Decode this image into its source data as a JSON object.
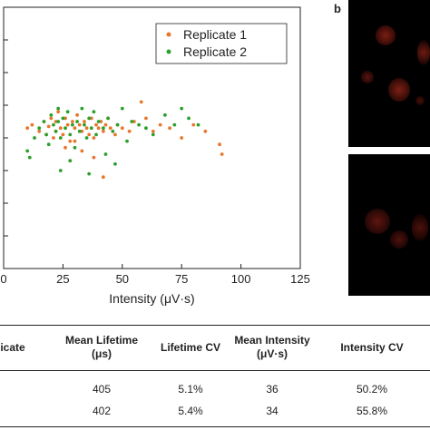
{
  "chart_data": {
    "type": "scatter",
    "xlabel": "Intensity (μV·s)",
    "xlim": [
      0,
      125
    ],
    "ylim": [
      0,
      8
    ],
    "x_ticks": [
      "0",
      "25",
      "50",
      "75",
      "100",
      "125"
    ],
    "legend_position": "top-right",
    "grid": false,
    "series": [
      {
        "name": "Replicate 1",
        "color": "#e8762c",
        "points": [
          [
            10,
            4.3
          ],
          [
            12,
            4.4
          ],
          [
            15,
            4.2
          ],
          [
            17,
            4.5
          ],
          [
            18,
            4.1
          ],
          [
            19,
            4.35
          ],
          [
            20,
            4.6
          ],
          [
            21,
            4.0
          ],
          [
            22,
            4.2
          ],
          [
            22,
            4.5
          ],
          [
            23,
            4.8
          ],
          [
            24,
            4.3
          ],
          [
            25,
            4.1
          ],
          [
            26,
            4.6
          ],
          [
            27,
            4.4
          ],
          [
            28,
            3.9
          ],
          [
            29,
            4.5
          ],
          [
            30,
            4.3
          ],
          [
            31,
            4.7
          ],
          [
            32,
            4.4
          ],
          [
            33,
            4.2
          ],
          [
            34,
            4.5
          ],
          [
            35,
            4.3
          ],
          [
            36,
            4.1
          ],
          [
            37,
            4.6
          ],
          [
            38,
            4.0
          ],
          [
            39,
            4.4
          ],
          [
            40,
            4.3
          ],
          [
            41,
            4.5
          ],
          [
            42,
            4.2
          ],
          [
            43,
            4.4
          ],
          [
            44,
            4.6
          ],
          [
            45,
            4.3
          ],
          [
            47,
            4.1
          ],
          [
            48,
            4.4
          ],
          [
            50,
            4.3
          ],
          [
            53,
            4.2
          ],
          [
            55,
            4.5
          ],
          [
            58,
            5.1
          ],
          [
            60,
            4.6
          ],
          [
            63,
            4.2
          ],
          [
            66,
            4.4
          ],
          [
            70,
            4.3
          ],
          [
            75,
            4.0
          ],
          [
            80,
            4.4
          ],
          [
            85,
            4.2
          ],
          [
            91,
            3.8
          ],
          [
            92,
            3.5
          ],
          [
            26,
            3.7
          ],
          [
            33,
            3.6
          ],
          [
            38,
            3.4
          ],
          [
            42,
            2.8
          ],
          [
            30,
            3.9
          ]
        ]
      },
      {
        "name": "Replicate 2",
        "color": "#2ca02c",
        "points": [
          [
            10,
            3.6
          ],
          [
            11,
            3.4
          ],
          [
            13,
            4.0
          ],
          [
            15,
            4.3
          ],
          [
            17,
            4.5
          ],
          [
            18,
            4.1
          ],
          [
            19,
            3.8
          ],
          [
            20,
            4.7
          ],
          [
            21,
            4.4
          ],
          [
            22,
            4.2
          ],
          [
            23,
            4.9
          ],
          [
            23,
            4.5
          ],
          [
            24,
            4.0
          ],
          [
            25,
            4.6
          ],
          [
            26,
            4.3
          ],
          [
            27,
            4.8
          ],
          [
            28,
            4.1
          ],
          [
            29,
            4.4
          ],
          [
            30,
            3.7
          ],
          [
            31,
            4.5
          ],
          [
            32,
            4.2
          ],
          [
            33,
            4.9
          ],
          [
            34,
            4.4
          ],
          [
            35,
            4.0
          ],
          [
            36,
            4.6
          ],
          [
            37,
            4.3
          ],
          [
            38,
            4.8
          ],
          [
            39,
            4.1
          ],
          [
            40,
            4.5
          ],
          [
            42,
            4.3
          ],
          [
            44,
            4.6
          ],
          [
            46,
            4.2
          ],
          [
            48,
            4.4
          ],
          [
            50,
            4.9
          ],
          [
            54,
            4.5
          ],
          [
            57,
            4.4
          ],
          [
            60,
            4.3
          ],
          [
            63,
            4.1
          ],
          [
            68,
            4.7
          ],
          [
            72,
            4.4
          ],
          [
            75,
            4.9
          ],
          [
            78,
            4.6
          ],
          [
            82,
            4.4
          ],
          [
            28,
            3.3
          ],
          [
            36,
            2.9
          ],
          [
            43,
            3.5
          ],
          [
            47,
            3.2
          ],
          [
            24,
            3.0
          ],
          [
            52,
            3.9
          ]
        ]
      }
    ]
  },
  "panel_b": {
    "letter": "b"
  },
  "table": {
    "headers": [
      "icate",
      "Mean Lifetime\n(μs)",
      "Lifetime CV",
      "Mean Intensity\n(μV·s)",
      "Intensity CV"
    ],
    "rows": [
      [
        "",
        "405",
        "5.1%",
        "36",
        "50.2%"
      ],
      [
        "",
        "402",
        "5.4%",
        "34",
        "55.8%"
      ]
    ]
  }
}
